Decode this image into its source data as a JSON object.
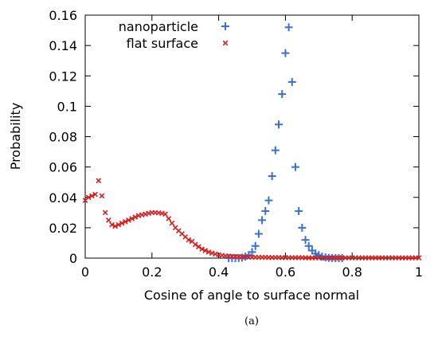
{
  "chart_data": {
    "type": "scatter",
    "caption": "(a)",
    "title": "",
    "xlabel": "Cosine of angle to surface normal",
    "ylabel": "Probability",
    "xlim": [
      0,
      1
    ],
    "ylim": [
      0,
      0.16
    ],
    "xticks": [
      "0",
      "0.2",
      "0.4",
      "0.6",
      "0.8",
      "1"
    ],
    "yticks": [
      "0",
      "0.02",
      "0.04",
      "0.06",
      "0.08",
      "0.1",
      "0.12",
      "0.14",
      "0.16"
    ],
    "grid": false,
    "legend_position": "top-left",
    "series": [
      {
        "name": "nanoparticle",
        "marker": "plus",
        "color": "#3b6fd1",
        "x": [
          0.43,
          0.44,
          0.45,
          0.46,
          0.47,
          0.48,
          0.49,
          0.5,
          0.51,
          0.52,
          0.53,
          0.54,
          0.55,
          0.56,
          0.57,
          0.58,
          0.59,
          0.6,
          0.61,
          0.62,
          0.63,
          0.64,
          0.65,
          0.66,
          0.67,
          0.68,
          0.69,
          0.7,
          0.71,
          0.72,
          0.73,
          0.74,
          0.75,
          0.76,
          0.77
        ],
        "y": [
          0,
          0,
          0,
          0.0001,
          0.0003,
          0.001,
          0.002,
          0.004,
          0.008,
          0.016,
          0.025,
          0.031,
          0.038,
          0.054,
          0.071,
          0.088,
          0.108,
          0.135,
          0.152,
          0.116,
          0.06,
          0.031,
          0.02,
          0.012,
          0.008,
          0.005,
          0.003,
          0.002,
          0.001,
          0.0005,
          0.0002,
          0.0001,
          0,
          0,
          0
        ]
      },
      {
        "name": "flat surface",
        "marker": "cross",
        "color": "#d42020",
        "x": [
          0,
          0.01,
          0.02,
          0.03,
          0.04,
          0.05,
          0.06,
          0.07,
          0.08,
          0.09,
          0.1,
          0.11,
          0.12,
          0.13,
          0.14,
          0.15,
          0.16,
          0.17,
          0.18,
          0.19,
          0.2,
          0.21,
          0.22,
          0.23,
          0.24,
          0.25,
          0.26,
          0.27,
          0.28,
          0.29,
          0.3,
          0.31,
          0.32,
          0.33,
          0.34,
          0.35,
          0.36,
          0.37,
          0.38,
          0.39,
          0.4,
          0.41,
          0.42,
          0.43,
          0.44,
          0.45,
          0.46,
          0.47,
          0.48,
          0.49,
          0.5,
          0.51,
          0.52,
          0.53,
          0.54,
          0.55,
          0.56,
          0.57,
          0.58,
          0.59,
          0.6,
          0.61,
          0.62,
          0.63,
          0.64,
          0.65,
          0.66,
          0.67,
          0.68,
          0.69,
          0.7,
          0.71,
          0.72,
          0.73,
          0.74,
          0.75,
          0.76,
          0.77,
          0.78,
          0.79,
          0.8,
          0.81,
          0.82,
          0.83,
          0.84,
          0.85,
          0.86,
          0.87,
          0.88,
          0.89,
          0.9,
          0.91,
          0.92,
          0.93,
          0.94,
          0.95,
          0.96,
          0.97,
          0.98,
          0.99,
          1.0
        ],
        "y": [
          0.038,
          0.04,
          0.041,
          0.042,
          0.051,
          0.041,
          0.03,
          0.025,
          0.022,
          0.021,
          0.022,
          0.023,
          0.024,
          0.025,
          0.026,
          0.027,
          0.028,
          0.0285,
          0.029,
          0.0295,
          0.03,
          0.03,
          0.0298,
          0.0295,
          0.029,
          0.026,
          0.023,
          0.02,
          0.018,
          0.016,
          0.014,
          0.012,
          0.011,
          0.009,
          0.0075,
          0.006,
          0.005,
          0.004,
          0.0033,
          0.0027,
          0.0022,
          0.0018,
          0.0015,
          0.0013,
          0.0011,
          0.001,
          0.0009,
          0.0008,
          0.0007,
          0.0007,
          0.0006,
          0.0006,
          0.0005,
          0.0005,
          0.0005,
          0.0004,
          0.0004,
          0.0004,
          0.0004,
          0.0003,
          0.0003,
          0.0003,
          0.0003,
          0.0003,
          0.0003,
          0.0003,
          0.0002,
          0.0002,
          0.0002,
          0.0002,
          0.0002,
          0.0002,
          0.0002,
          0.0002,
          0.0002,
          0.0002,
          0.0002,
          0.0002,
          0.0002,
          0.0002,
          0.0002,
          0.0002,
          0.0002,
          0.0002,
          0.0002,
          0.0002,
          0.0002,
          0.0002,
          0.0002,
          0.0002,
          0.0002,
          0.0002,
          0.0002,
          0.0002,
          0.0002,
          0.0002,
          0.0002,
          0.0002,
          0.0002,
          0.0002,
          0.0002
        ]
      }
    ]
  }
}
